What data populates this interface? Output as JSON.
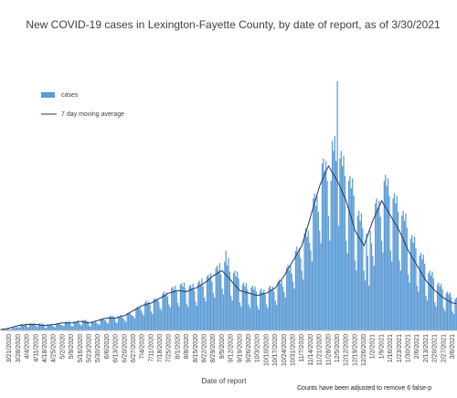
{
  "chart_data": {
    "type": "bar",
    "title": "New COVID-19 cases in Lexington-Fayette County, by date of report, as of 3/30/2021",
    "x_label": "Date of report",
    "note": "Counts have been adjusted to remove 6 false-p",
    "ylim": [
      0,
      520
    ],
    "legend": "upper-left",
    "categories": [
      null,
      null,
      null,
      null,
      null,
      null,
      null,
      "3/21/2020",
      null,
      null,
      null,
      null,
      null,
      null,
      "3/28/2020",
      null,
      null,
      null,
      null,
      null,
      null,
      "4/4/2020",
      null,
      null,
      null,
      null,
      null,
      null,
      "4/11/2020",
      null,
      null,
      null,
      null,
      null,
      null,
      "4/18/2020",
      null,
      null,
      null,
      null,
      null,
      null,
      "4/25/2020",
      null,
      null,
      null,
      null,
      null,
      null,
      "5/2/2020",
      null,
      null,
      null,
      null,
      null,
      null,
      "5/9/2020",
      null,
      null,
      null,
      null,
      null,
      null,
      "5/16/2020",
      null,
      null,
      null,
      null,
      null,
      null,
      "5/23/2020",
      null,
      null,
      null,
      null,
      null,
      null,
      "5/30/2020",
      null,
      null,
      null,
      null,
      null,
      null,
      "6/6/2020",
      null,
      null,
      null,
      null,
      null,
      null,
      "6/13/2020",
      null,
      null,
      null,
      null,
      null,
      null,
      "6/20/2020",
      null,
      null,
      null,
      null,
      null,
      null,
      "6/27/2020",
      null,
      null,
      null,
      null,
      null,
      null,
      "7/4/2020",
      null,
      null,
      null,
      null,
      null,
      null,
      "7/11/2020",
      null,
      null,
      null,
      null,
      null,
      null,
      "7/18/2020",
      null,
      null,
      null,
      null,
      null,
      null,
      "7/25/2020",
      null,
      null,
      null,
      null,
      null,
      null,
      "8/1/2020",
      null,
      null,
      null,
      null,
      null,
      null,
      "8/8/2020",
      null,
      null,
      null,
      null,
      null,
      null,
      "8/15/2020",
      null,
      null,
      null,
      null,
      null,
      null,
      "8/22/2020",
      null,
      null,
      null,
      null,
      null,
      null,
      "8/29/2020",
      null,
      null,
      null,
      null,
      null,
      null,
      "9/5/2020",
      null,
      null,
      null,
      null,
      null,
      null,
      "9/12/2020",
      null,
      null,
      null,
      null,
      null,
      null,
      "9/19/2020",
      null,
      null,
      null,
      null,
      null,
      null,
      "9/26/2020",
      null,
      null,
      null,
      null,
      null,
      null,
      "10/3/2020",
      null,
      null,
      null,
      null,
      null,
      null,
      "10/10/2020",
      null,
      null,
      null,
      null,
      null,
      null,
      "10/17/2020",
      null,
      null,
      null,
      null,
      null,
      null,
      "10/24/2020",
      null,
      null,
      null,
      null,
      null,
      null,
      "10/31/2020",
      null,
      null,
      null,
      null,
      null,
      null,
      "11/7/2020",
      null,
      null,
      null,
      null,
      null,
      null,
      "11/14/2020",
      null,
      null,
      null,
      null,
      null,
      null,
      "11/21/2020",
      null,
      null,
      null,
      null,
      null,
      null,
      "11/28/2020",
      null,
      null,
      null,
      null,
      null,
      null,
      "12/5/2020",
      null,
      null,
      null,
      null,
      null,
      null,
      "12/12/2020",
      null,
      null,
      null,
      null,
      null,
      null,
      "12/19/2020",
      null,
      null,
      null,
      null,
      null,
      null,
      "12/26/2020",
      null,
      null,
      null,
      null,
      null,
      null,
      "1/2/2021",
      null,
      null,
      null,
      null,
      null,
      null,
      "1/9/2021",
      null,
      null,
      null,
      null,
      null,
      null,
      "1/16/2021",
      null,
      null,
      null,
      null,
      null,
      null,
      "1/23/2021",
      null,
      null,
      null,
      null,
      null,
      null,
      "1/30/2021",
      null,
      null,
      null,
      null,
      null,
      null,
      "2/6/2021",
      null,
      null,
      null,
      null,
      null,
      null,
      "2/13/2021",
      null,
      null,
      null,
      null,
      null,
      null,
      "2/20/2021",
      null,
      null,
      null,
      null,
      null,
      null,
      "2/27/2021",
      null,
      null,
      null,
      null,
      null,
      null,
      "3/6/2021",
      null,
      null,
      null
    ],
    "series": [
      {
        "name": "cases",
        "color": "#5b9bd5",
        "type": "bar",
        "values": [
          1,
          0,
          2,
          3,
          2,
          4,
          5,
          3,
          2,
          6,
          7,
          5,
          8,
          6,
          7,
          5,
          11,
          13,
          10,
          12,
          14,
          8,
          6,
          14,
          15,
          12,
          16,
          13,
          9,
          7,
          13,
          15,
          11,
          14,
          12,
          6,
          5,
          12,
          11,
          10,
          13,
          9,
          8,
          6,
          14,
          13,
          15,
          12,
          11,
          10,
          9,
          17,
          18,
          16,
          19,
          14,
          9,
          8,
          18,
          16,
          17,
          20,
          15,
          12,
          10,
          21,
          20,
          22,
          19,
          18,
          10,
          8,
          17,
          19,
          16,
          18,
          15,
          13,
          11,
          24,
          22,
          25,
          21,
          20,
          16,
          14,
          28,
          30,
          27,
          29,
          24,
          17,
          15,
          29,
          27,
          31,
          26,
          25,
          20,
          17,
          35,
          33,
          36,
          32,
          30,
          28,
          24,
          45,
          48,
          44,
          47,
          40,
          35,
          30,
          56,
          60,
          55,
          58,
          52,
          38,
          33,
          62,
          65,
          60,
          64,
          57,
          45,
          40,
          74,
          78,
          70,
          76,
          68,
          52,
          46,
          85,
          88,
          82,
          90,
          78,
          55,
          48,
          92,
          95,
          88,
          96,
          84,
          54,
          47,
          88,
          92,
          86,
          94,
          80,
          58,
          50,
          96,
          100,
          92,
          104,
          88,
          66,
          58,
          108,
          112,
          104,
          115,
          98,
          76,
          66,
          125,
          130,
          120,
          135,
          112,
          84,
          72,
          138,
          160,
          130,
          145,
          118,
          70,
          60,
          115,
          120,
          108,
          118,
          104,
          56,
          48,
          92,
          96,
          88,
          95,
          82,
          52,
          45,
          86,
          90,
          82,
          88,
          78,
          49,
          42,
          80,
          84,
          76,
          82,
          72,
          52,
          45,
          86,
          90,
          82,
          88,
          78,
          60,
          51,
          98,
          102,
          94,
          100,
          88,
          77,
          66,
          126,
          132,
          120,
          130,
          114,
          98,
          84,
          160,
          168,
          154,
          165,
          145,
          120,
          102,
          195,
          205,
          188,
          200,
          176,
          160,
          138,
          265,
          275,
          250,
          270,
          238,
          200,
          175,
          335,
          345,
          320,
          340,
          300,
          230,
          180,
          300,
          380,
          360,
          390,
          340,
          500,
          210,
          345,
          360,
          330,
          350,
          310,
          180,
          155,
          300,
          310,
          285,
          305,
          270,
          140,
          120,
          230,
          240,
          220,
          235,
          205,
          120,
          100,
          195,
          150,
          90,
          200,
          175,
          150,
          130,
          255,
          265,
          245,
          260,
          228,
          180,
          156,
          300,
          312,
          290,
          305,
          270,
          160,
          138,
          265,
          275,
          255,
          270,
          238,
          140,
          120,
          230,
          240,
          220,
          235,
          206,
          112,
          96,
          184,
          192,
          176,
          188,
          165,
          90,
          78,
          150,
          156,
          143,
          152,
          134,
          70,
          60,
          115,
          120,
          110,
          118,
          104,
          56,
          48,
          92,
          96,
          88,
          94,
          83,
          45,
          39,
          75,
          78,
          72,
          76,
          67,
          38,
          33,
          63,
          66
        ]
      },
      {
        "name": "7 day moving average",
        "color": "#1f3864",
        "type": "line",
        "values": [
          2,
          2,
          3,
          3,
          3,
          4,
          4,
          5,
          6,
          6,
          7,
          8,
          8,
          9,
          10,
          10,
          11,
          11,
          11,
          11,
          12,
          12,
          12,
          12,
          12,
          12,
          12,
          12,
          12,
          12,
          11,
          11,
          11,
          10,
          10,
          10,
          10,
          11,
          11,
          11,
          11,
          12,
          12,
          12,
          13,
          13,
          14,
          14,
          15,
          15,
          15,
          15,
          15,
          15,
          15,
          15,
          15,
          15,
          16,
          16,
          17,
          17,
          18,
          18,
          18,
          17,
          17,
          16,
          16,
          15,
          15,
          16,
          16,
          17,
          18,
          19,
          19,
          20,
          21,
          21,
          22,
          23,
          24,
          24,
          25,
          25,
          25,
          25,
          25,
          25,
          25,
          25,
          26,
          26,
          27,
          28,
          29,
          29,
          30,
          31,
          33,
          34,
          36,
          37,
          39,
          40,
          41,
          43,
          44,
          46,
          47,
          49,
          50,
          51,
          51,
          52,
          53,
          54,
          54,
          55,
          56,
          58,
          59,
          61,
          62,
          64,
          65,
          66,
          68,
          69,
          71,
          72,
          74,
          75,
          76,
          76,
          77,
          78,
          79,
          79,
          80,
          80,
          79,
          79,
          79,
          78,
          78,
          78,
          79,
          80,
          81,
          82,
          83,
          84,
          85,
          86,
          88,
          89,
          91,
          92,
          94,
          95,
          97,
          99,
          101,
          104,
          106,
          108,
          110,
          111,
          113,
          114,
          116,
          117,
          119,
          120,
          117,
          114,
          111,
          109,
          106,
          103,
          100,
          97,
          94,
          91,
          89,
          86,
          83,
          80,
          79,
          79,
          78,
          77,
          76,
          76,
          75,
          74,
          74,
          73,
          72,
          71,
          71,
          70,
          71,
          71,
          72,
          73,
          74,
          74,
          75,
          76,
          78,
          79,
          81,
          82,
          84,
          85,
          89,
          92,
          96,
          99,
          103,
          106,
          110,
          114,
          119,
          123,
          127,
          131,
          136,
          140,
          144,
          149,
          153,
          157,
          161,
          166,
          170,
          179,
          187,
          196,
          204,
          213,
          221,
          230,
          239,
          247,
          256,
          264,
          273,
          281,
          290,
          296,
          301,
          307,
          313,
          319,
          324,
          330,
          326,
          321,
          317,
          313,
          309,
          304,
          300,
          294,
          289,
          283,
          277,
          271,
          266,
          260,
          251,
          243,
          234,
          226,
          217,
          209,
          200,
          196,
          191,
          187,
          183,
          179,
          174,
          170,
          177,
          184,
          191,
          199,
          206,
          213,
          220,
          226,
          231,
          237,
          243,
          249,
          254,
          260,
          256,
          251,
          247,
          243,
          239,
          234,
          230,
          226,
          221,
          217,
          213,
          209,
          204,
          200,
          194,
          189,
          183,
          177,
          171,
          166,
          160,
          156,
          151,
          147,
          143,
          139,
          134,
          130,
          126,
          121,
          117,
          113,
          109,
          104,
          100,
          97,
          94,
          91,
          89,
          86,
          83,
          80,
          78,
          76,
          74,
          71,
          69,
          67,
          65,
          64,
          62,
          61,
          59,
          58,
          56,
          55,
          55,
          54,
          54
        ]
      }
    ]
  }
}
